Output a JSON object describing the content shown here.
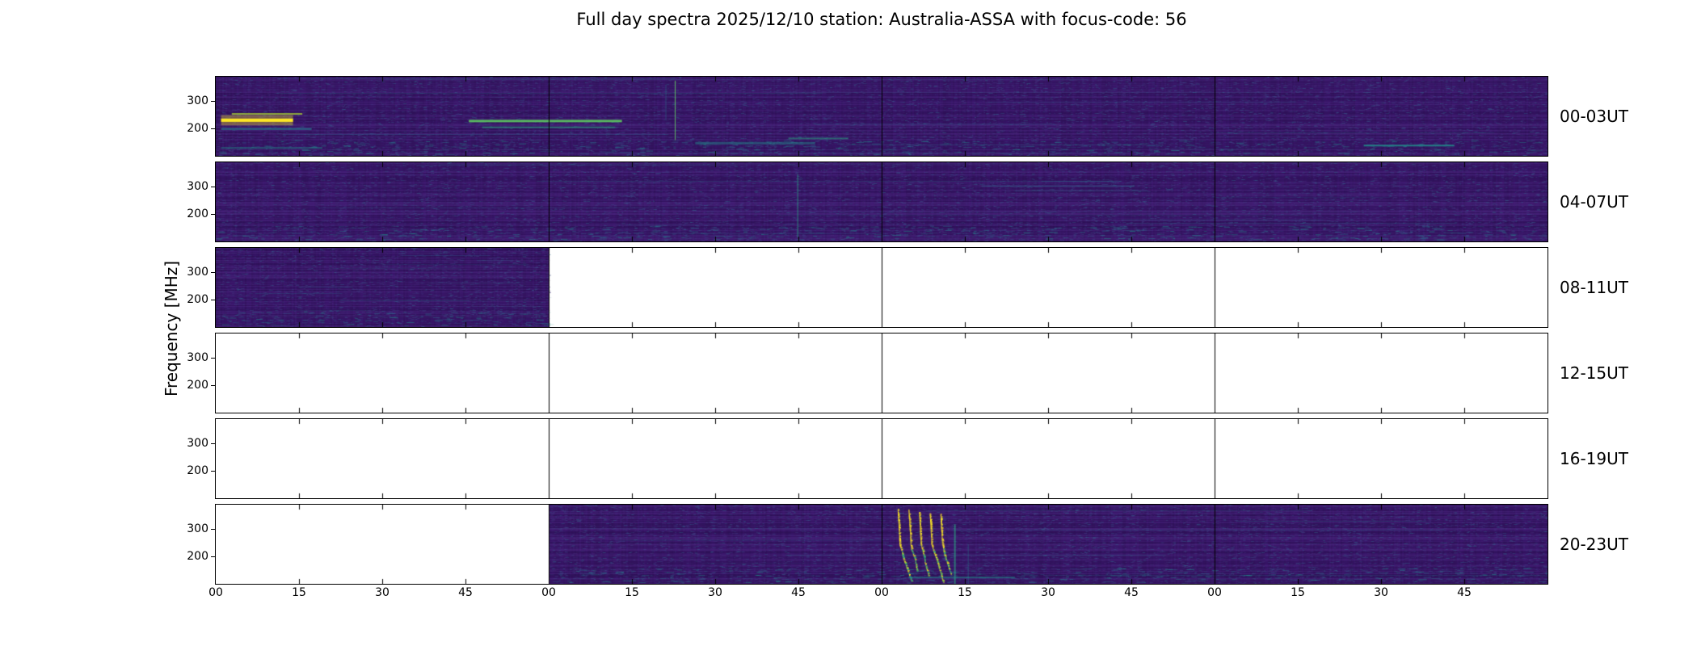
{
  "title": "Full day spectra 2025/12/10 station: Australia-ASSA with focus-code: 56",
  "ylabel": "Frequency [MHz]",
  "axes": {
    "y_tick_labels": [
      "300",
      "200"
    ],
    "x_tick_labels": [
      "00",
      "15",
      "30",
      "45",
      "00",
      "15",
      "30",
      "45",
      "00",
      "15",
      "30",
      "45",
      "00",
      "15",
      "30",
      "45"
    ]
  },
  "colors": {
    "background": "#ffffff",
    "axis": "#000000",
    "spectrogram_base": "#3a176b",
    "viridis": [
      "#440154",
      "#472d7b",
      "#3b528b",
      "#2c728e",
      "#21918c",
      "#28ae80",
      "#5ec962",
      "#addc30",
      "#fde725"
    ]
  },
  "chart_data": {
    "type": "heatmap",
    "title": "Full day spectra 2025/12/10 station: Australia-ASSA with focus-code: 56",
    "ylabel": "Frequency [MHz]",
    "y_ticks_mhz": [
      300,
      200
    ],
    "hours_per_row": 4,
    "minutes_tick_step": 15,
    "rows": [
      {
        "label": "00-03UT",
        "coverage": [
          [
            0,
            1
          ]
        ],
        "features": [
          {
            "kind": "hline",
            "x": [
              0.004,
              0.058
            ],
            "y": 0.55,
            "w": 4,
            "color": "#fde725",
            "glow": true
          },
          {
            "kind": "hline",
            "x": [
              0.012,
              0.065
            ],
            "y": 0.47,
            "w": 2,
            "color": "#addc30",
            "alpha": 0.75
          },
          {
            "kind": "hline",
            "x": [
              0.004,
              0.072
            ],
            "y": 0.66,
            "w": 2,
            "color": "#2c728e",
            "alpha": 0.9
          },
          {
            "kind": "hline",
            "x": [
              0.19,
              0.305
            ],
            "y": 0.56,
            "w": 3,
            "color": "#5ec962",
            "alpha": 0.9
          },
          {
            "kind": "hline",
            "x": [
              0.2,
              0.3
            ],
            "y": 0.64,
            "w": 2,
            "color": "#28ae80",
            "alpha": 0.55
          },
          {
            "kind": "vline",
            "x": 0.345,
            "y": [
              0.05,
              0.8
            ],
            "w": 1,
            "color": "#5ec962",
            "alpha": 0.9
          },
          {
            "kind": "vline",
            "x": 0.338,
            "y": [
              0.1,
              0.55
            ],
            "w": 1,
            "color": "#2c728e",
            "alpha": 0.5
          },
          {
            "kind": "hline",
            "x": [
              0.36,
              0.45
            ],
            "y": 0.84,
            "w": 3,
            "color": "#21918c",
            "alpha": 0.45
          },
          {
            "kind": "hline",
            "x": [
              0.43,
              0.475
            ],
            "y": 0.78,
            "w": 2,
            "color": "#28ae80",
            "alpha": 0.5
          },
          {
            "kind": "hline",
            "x": [
              0.862,
              0.93
            ],
            "y": 0.87,
            "w": 2,
            "color": "#21918c",
            "alpha": 0.85
          },
          {
            "kind": "hline",
            "x": [
              0.05,
              0.34
            ],
            "y": 0.73,
            "w": 1,
            "color": "#2c728e",
            "alpha": 0.35
          },
          {
            "kind": "hline",
            "x": [
              0.45,
              0.63
            ],
            "y": 0.6,
            "w": 1,
            "color": "#2c728e",
            "alpha": 0.3
          },
          {
            "kind": "hline",
            "x": [
              0.004,
              0.08
            ],
            "y": 0.9,
            "w": 2,
            "color": "#21918c",
            "alpha": 0.5
          }
        ]
      },
      {
        "label": "04-07UT",
        "coverage": [
          [
            0,
            1
          ]
        ],
        "features": [
          {
            "kind": "vline",
            "x": 0.437,
            "y": [
              0.15,
              0.95
            ],
            "w": 1,
            "color": "#28ae80",
            "alpha": 0.7
          },
          {
            "kind": "hline",
            "x": [
              0.575,
              0.69
            ],
            "y": 0.3,
            "w": 1,
            "color": "#2c728e",
            "alpha": 0.6
          },
          {
            "kind": "hline",
            "x": [
              0.6,
              0.7
            ],
            "y": 0.36,
            "w": 1,
            "color": "#2c728e",
            "alpha": 0.4
          },
          {
            "kind": "hline",
            "x": [
              0.62,
              0.68
            ],
            "y": 0.24,
            "w": 1,
            "color": "#31688e",
            "alpha": 0.45
          }
        ]
      },
      {
        "label": "08-11UT",
        "coverage": [
          [
            0,
            0.25
          ]
        ],
        "features": []
      },
      {
        "label": "12-15UT",
        "coverage": [],
        "features": []
      },
      {
        "label": "16-19UT",
        "coverage": [],
        "features": []
      },
      {
        "label": "20-23UT",
        "coverage": [
          [
            0.25,
            1
          ]
        ],
        "features": [
          {
            "kind": "burst",
            "x": 0.528,
            "spread": 0.008,
            "count": 5,
            "colors": [
              "#fde725",
              "#addc30",
              "#5ec962",
              "#28ae80"
            ]
          },
          {
            "kind": "vline",
            "x": 0.555,
            "y": [
              0.25,
              1.0
            ],
            "w": 2,
            "color": "#28ae80",
            "alpha": 0.6
          },
          {
            "kind": "vline",
            "x": 0.565,
            "y": [
              0.5,
              1.0
            ],
            "w": 1,
            "color": "#2c728e",
            "alpha": 0.55
          },
          {
            "kind": "hline",
            "x": [
              0.52,
              0.6
            ],
            "y": 0.92,
            "w": 2,
            "color": "#21918c",
            "alpha": 0.55
          },
          {
            "kind": "hline",
            "x": [
              0.3,
              0.5
            ],
            "y": 0.45,
            "w": 1,
            "color": "#2c728e",
            "alpha": 0.25
          }
        ]
      }
    ]
  }
}
